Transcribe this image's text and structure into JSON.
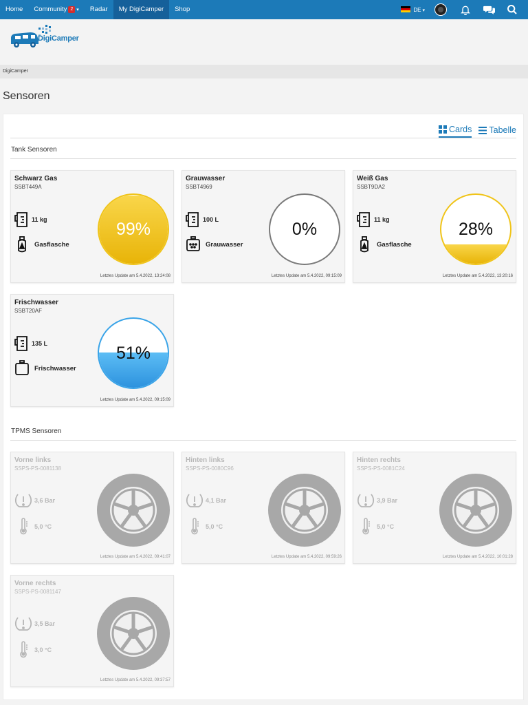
{
  "nav": {
    "items": [
      {
        "label": "Home"
      },
      {
        "label": "Community",
        "badge": "2"
      },
      {
        "label": "Radar"
      },
      {
        "label": "My DigiCamper",
        "active": true
      },
      {
        "label": "Shop"
      }
    ],
    "language": "DE",
    "accent_color": "#1c7ab8"
  },
  "brand": {
    "logo_text": "DigiCamper"
  },
  "breadcrumb": "DigiCamper",
  "page_title": "Sensoren",
  "view_tabs": {
    "cards": "Cards",
    "table": "Tabelle",
    "active": "cards"
  },
  "tank_section": {
    "title": "Tank Sensoren",
    "cards": [
      {
        "name": "Schwarz Gas",
        "id": "SSBT449A",
        "capacity": "11 kg",
        "type": "Gasflasche",
        "percent_label": "99%",
        "fill": 0.99,
        "updated": "Letztes Update am 5.4.2022, 13:24:08",
        "color": "yellow",
        "icon": "gas-bottle-icon"
      },
      {
        "name": "Grauwasser",
        "id": "SSBT4969",
        "capacity": "100 L",
        "type": "Grauwasser",
        "percent_label": "0%",
        "fill": 0.0,
        "updated": "Letztes Update am 5.4.2022, 09:15:09",
        "color": "gray",
        "icon": "greywater-tank-icon"
      },
      {
        "name": "Weiß Gas",
        "id": "SSBT9DA2",
        "capacity": "11 kg",
        "type": "Gasflasche",
        "percent_label": "28%",
        "fill": 0.28,
        "updated": "Letztes Update am 5.4.2022, 13:20:16",
        "color": "yellow",
        "icon": "gas-bottle-icon"
      },
      {
        "name": "Frischwasser",
        "id": "SSBT20AF",
        "capacity": "135 L",
        "type": "Frischwasser",
        "percent_label": "51%",
        "fill": 0.51,
        "updated": "Letztes Update am 5.4.2022, 09:15:09",
        "color": "blue",
        "icon": "freshwater-tank-icon"
      }
    ]
  },
  "tpms_section": {
    "title": "TPMS Sensoren",
    "cards": [
      {
        "name": "Vorne links",
        "id": "SSPS-PS-0081138",
        "pressure": "3,6 Bar",
        "temperature": "5,0 °C",
        "updated": "Letztes Update am 5.4.2022, 09:41:07"
      },
      {
        "name": "Hinten links",
        "id": "SSPS-PS-0080C96",
        "pressure": "4,1 Bar",
        "temperature": "5,0 °C",
        "updated": "Letztes Update am 5.4.2022, 09:59:26"
      },
      {
        "name": "Hinten rechts",
        "id": "SSPS-PS-0081C24",
        "pressure": "3,9 Bar",
        "temperature": "5,0 °C",
        "updated": "Letztes Update am 5.4.2022, 10:01:28"
      },
      {
        "name": "Vorne rechts",
        "id": "SSPS-PS-0081147",
        "pressure": "3,5 Bar",
        "temperature": "3,0 °C",
        "updated": "Letztes Update am 5.4.2022, 09:37:57"
      }
    ]
  }
}
